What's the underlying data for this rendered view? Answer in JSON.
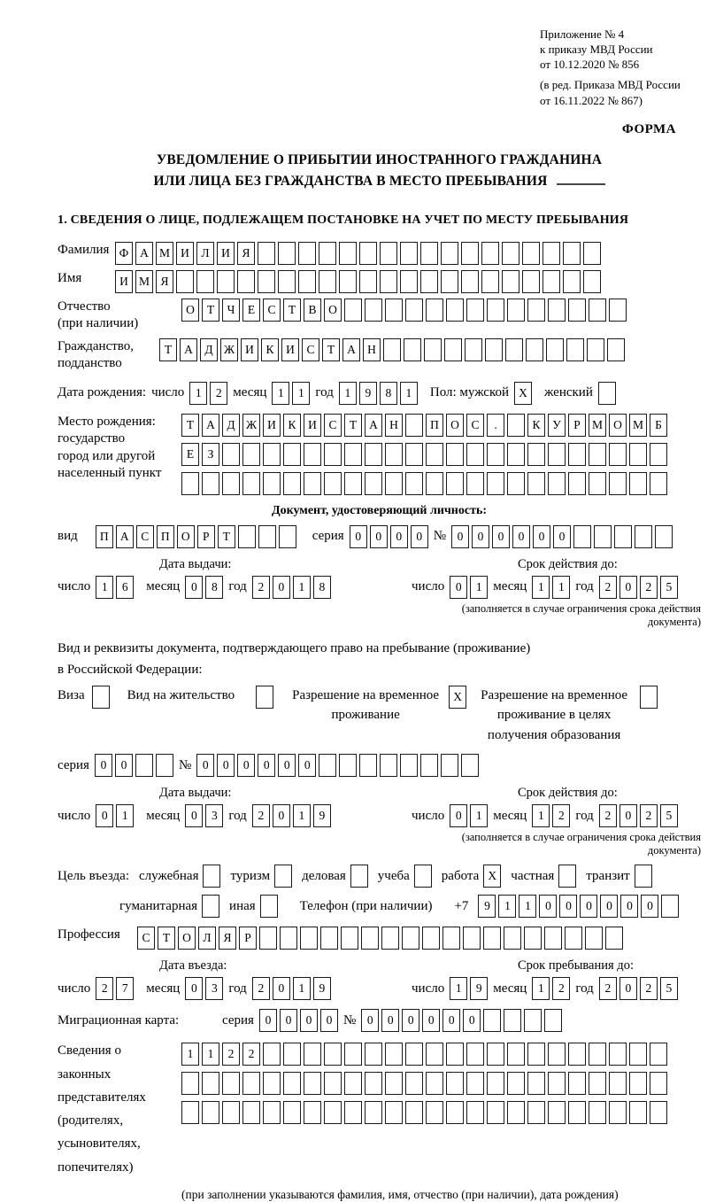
{
  "page": {
    "ref_lines": [
      "Приложение № 4",
      "к приказу МВД России",
      "от 10.12.2020 № 856"
    ],
    "ref_lines2": [
      "(в ред. Приказа МВД России",
      "от 16.11.2022 № 867)"
    ],
    "form_label": "ФОРМА",
    "title_line1": "УВЕДОМЛЕНИЕ О ПРИБЫТИИ ИНОСТРАННОГО ГРАЖДАНИНА",
    "title_line2": "ИЛИ ЛИЦА БЕЗ ГРАЖДАНСТВА В МЕСТО ПРЕБЫВАНИЯ",
    "section1_heading": "1. СВЕДЕНИЯ О ЛИЦЕ, ПОДЛЕЖАЩЕМ ПОСТАНОВКЕ НА УЧЕТ ПО МЕСТУ ПРЕБЫВАНИЯ"
  },
  "date_labels": {
    "day": "число",
    "month": "месяц",
    "year": "год"
  },
  "fields": {
    "surname": {
      "label": "Фамилия",
      "value": "ФАМИЛИЯ",
      "len": 24
    },
    "name": {
      "label": "Имя",
      "value": "ИМЯ",
      "len": 24
    },
    "patronymic": {
      "label": "Отчество",
      "label2": "(при наличии)",
      "value": "ОТЧЕСТВО",
      "len": 22
    },
    "citizenship": {
      "label": "Гражданство,",
      "label2": "подданство",
      "value": "ТАДЖИКИСТАН",
      "len": 23
    },
    "birth_date": {
      "label": "Дата рождения:",
      "day": "12",
      "month": "11",
      "year": "1981"
    },
    "sex": {
      "label": "Пол: мужской",
      "male": "X",
      "female_label": "женский",
      "female": ""
    },
    "birth_place": {
      "label": "Место рождения:",
      "sub1": "государство",
      "sub2": "город или другой",
      "sub3": "населенный пункт",
      "row1": {
        "value": "ТАДЖИКИСТАН ПОС. КУРМОМБ",
        "len": 24
      },
      "row2": {
        "value": "ЕЗ",
        "len": 24
      },
      "row3": {
        "value": "",
        "len": 24
      }
    }
  },
  "identity_doc": {
    "heading": "Документ, удостоверяющий личность:",
    "kind_label": "вид",
    "kind": {
      "value": "ПАСПОРТ",
      "len": 10
    },
    "series_label": "серия",
    "series": {
      "value": "0000",
      "len": 4
    },
    "number_label": "№",
    "number": {
      "value": "000000",
      "len": 11
    },
    "issue_heading": "Дата выдачи:",
    "issue": {
      "day": "16",
      "month": "08",
      "year": "2018"
    },
    "valid_heading": "Срок действия до:",
    "valid": {
      "day": "01",
      "month": "11",
      "year": "2025"
    },
    "note": "(заполняется в случае ограничения срока действия документа)"
  },
  "residence_doc": {
    "intro1": "Вид и реквизиты документа, подтверждающего право на пребывание (проживание)",
    "intro2": "в Российской Федерации:",
    "opt_visa": {
      "label": "Виза",
      "checked": ""
    },
    "opt_residence_permit": {
      "label": "Вид на жительство",
      "checked": ""
    },
    "opt_temp_permit": {
      "label": "Разрешение на временное проживание",
      "checked": "X"
    },
    "opt_edu_permit": {
      "label": "Разрешение на временное проживание в целях получения образования",
      "checked": ""
    },
    "series_label": "серия",
    "series": {
      "value": "00",
      "len": 4
    },
    "number_label": "№",
    "number": {
      "value": "000000",
      "len": 14
    },
    "issue_heading": "Дата выдачи:",
    "issue": {
      "day": "01",
      "month": "03",
      "year": "2019"
    },
    "valid_heading": "Срок действия до:",
    "valid": {
      "day": "01",
      "month": "12",
      "year": "2025"
    },
    "note": "(заполняется в случае ограничения срока действия документа)"
  },
  "purpose": {
    "label": "Цель въезда:",
    "opt_official": {
      "label": "служебная",
      "checked": ""
    },
    "opt_tourism": {
      "label": "туризм",
      "checked": ""
    },
    "opt_business": {
      "label": "деловая",
      "checked": ""
    },
    "opt_study": {
      "label": "учеба",
      "checked": ""
    },
    "opt_work": {
      "label": "работа",
      "checked": "X"
    },
    "opt_private": {
      "label": "частная",
      "checked": ""
    },
    "opt_transit": {
      "label": "транзит",
      "checked": ""
    },
    "opt_humanitarian": {
      "label": "гуманитарная",
      "checked": ""
    },
    "opt_other": {
      "label": "иная",
      "checked": ""
    },
    "phone_label": "Телефон (при наличии)",
    "phone_prefix": "+7",
    "phone": {
      "value": "911000000",
      "len": 10
    }
  },
  "profession": {
    "label": "Профессия",
    "value": "СТОЛЯР",
    "len": 24
  },
  "entry": {
    "date_heading": "Дата въезда:",
    "date": {
      "day": "27",
      "month": "03",
      "year": "2019"
    },
    "stay_heading": "Срок пребывания до:",
    "stay": {
      "day": "19",
      "month": "12",
      "year": "2025"
    }
  },
  "migration_card": {
    "label": "Миграционная карта:",
    "series_label": "серия",
    "series": {
      "value": "0000",
      "len": 4
    },
    "number_label": "№",
    "number": {
      "value": "000000",
      "len": 10
    }
  },
  "representatives": {
    "label1": "Сведения о",
    "label2": "законных",
    "label3": "представителях",
    "label4": "(родителях,",
    "label5": "усыновителях,",
    "label6": "попечителях)",
    "row1": {
      "value": "1122",
      "len": 24
    },
    "row2": {
      "value": "",
      "len": 24
    },
    "row3": {
      "value": "",
      "len": 24
    },
    "note": "(при заполнении указываются фамилия, имя, отчество (при наличии), дата рождения)"
  }
}
